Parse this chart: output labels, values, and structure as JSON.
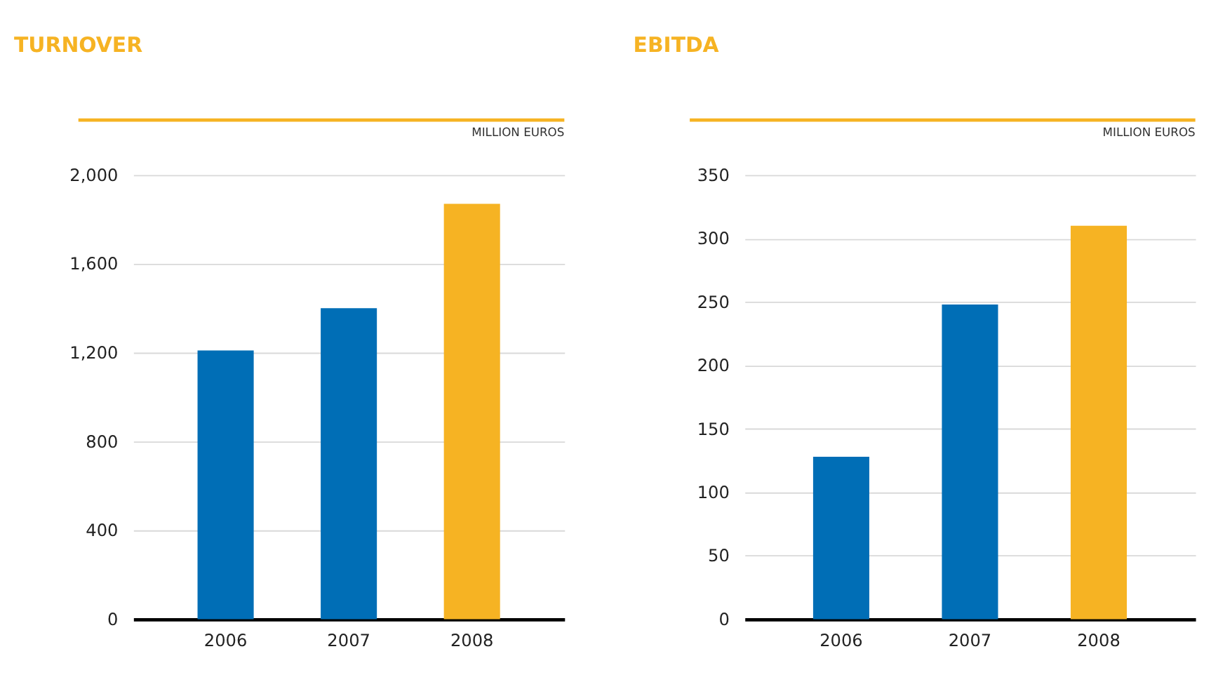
{
  "chart_data": [
    {
      "type": "bar",
      "title": "TURNOVER",
      "subtitle": "MILLION EUROS",
      "categories": [
        "2006",
        "2007",
        "2008"
      ],
      "values": [
        1210,
        1400,
        1870
      ],
      "colors": [
        "#006eb6",
        "#006eb6",
        "#f6b323"
      ],
      "ylim": [
        0,
        2000
      ],
      "yticks": [
        0,
        {
          "value": 400,
          "label": "400"
        },
        {
          "value": 800,
          "label": "800"
        },
        {
          "value": 1200,
          "label": "1,200"
        },
        {
          "value": 1600,
          "label": "1,600"
        },
        {
          "value": 2000,
          "label": "2,000"
        }
      ],
      "grid": "y"
    },
    {
      "type": "bar",
      "title": "EBITDA",
      "subtitle": "MILLION EUROS",
      "categories": [
        "2006",
        "2007",
        "2008"
      ],
      "values": [
        128,
        248,
        310
      ],
      "colors": [
        "#006eb6",
        "#006eb6",
        "#f6b323"
      ],
      "ylim": [
        0,
        350
      ],
      "yticks": [
        0,
        50,
        100,
        150,
        200,
        250,
        300,
        350
      ],
      "grid": "y"
    }
  ]
}
